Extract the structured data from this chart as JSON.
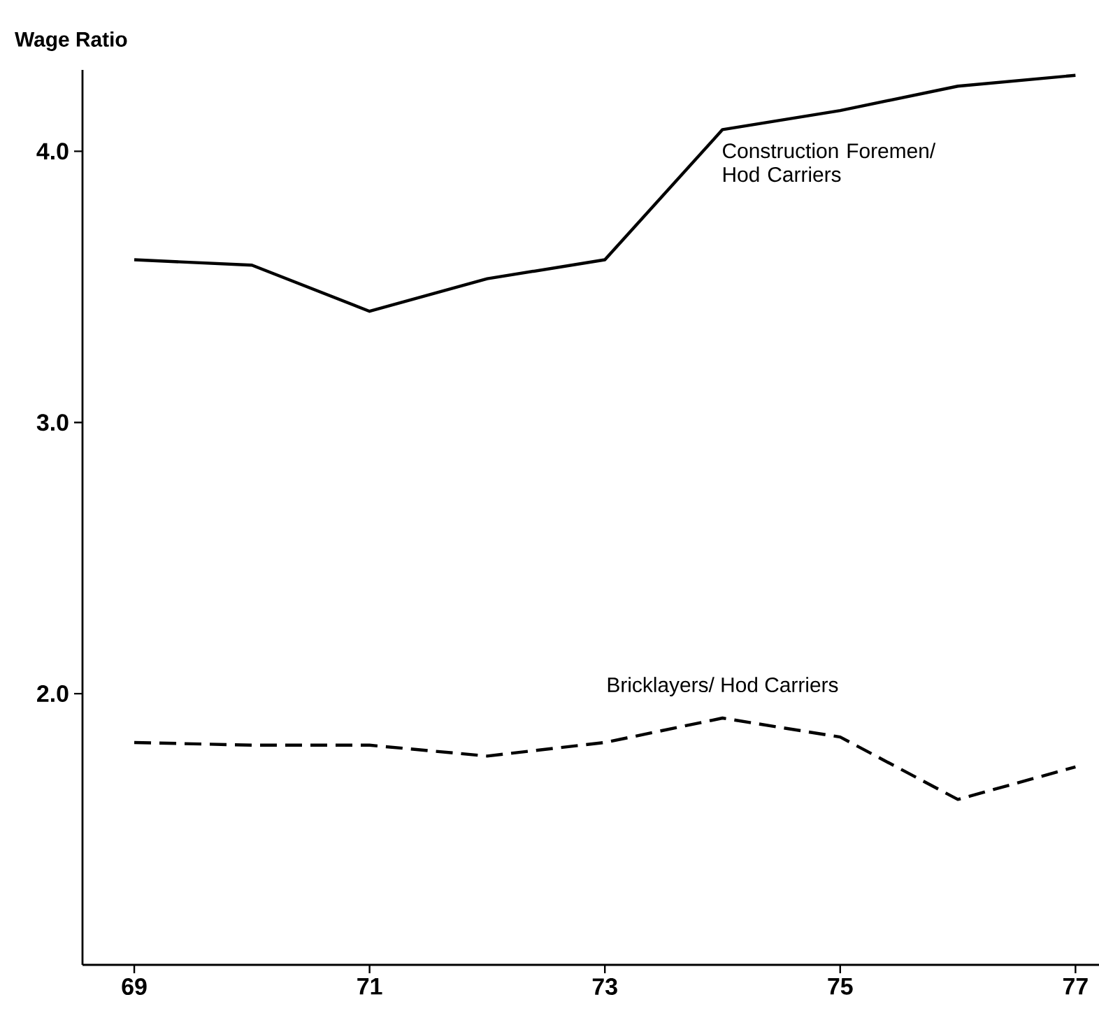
{
  "chart_data": {
    "type": "line",
    "ylabel": "Wage Ratio",
    "xlim": [
      68.56,
      77.2
    ],
    "xticks": [
      69,
      71,
      73,
      75,
      77
    ],
    "ylim": [
      1.0,
      4.3
    ],
    "yticks": [
      {
        "value": 2,
        "label": "2.0"
      },
      {
        "value": 3,
        "label": "3.0"
      },
      {
        "value": 4,
        "label": "4.0"
      }
    ],
    "series": [
      {
        "name": "Construction Foremen/ Hod Carriers",
        "color": "#000000",
        "line_style": "solid",
        "x": [
          69,
          70,
          71,
          72,
          73,
          74,
          75,
          76,
          77
        ],
        "values": [
          3.6,
          3.58,
          3.41,
          3.53,
          3.6,
          4.08,
          4.15,
          4.24,
          4.28
        ]
      },
      {
        "name": "Bricklayers/ Hod Carriers",
        "color": "#000000",
        "line_style": "dashed",
        "x": [
          69,
          70,
          71,
          72,
          73,
          74,
          75,
          76,
          77
        ],
        "values": [
          1.82,
          1.81,
          1.81,
          1.77,
          1.82,
          1.91,
          1.84,
          1.61,
          1.73
        ]
      }
    ]
  }
}
